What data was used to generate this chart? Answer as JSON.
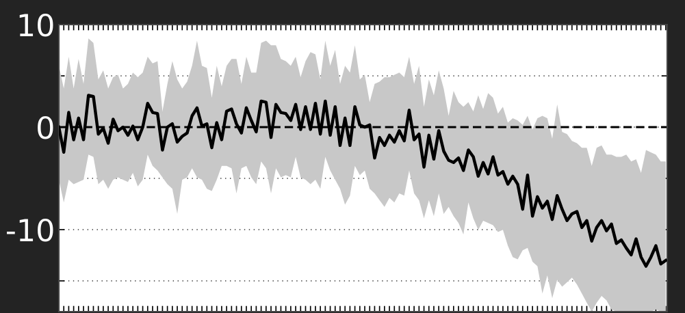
{
  "chart_data": {
    "type": "line",
    "categories": [
      null,
      null,
      null,
      null,
      null,
      null,
      null,
      null,
      null,
      null,
      null,
      null,
      null,
      null,
      null,
      null,
      null,
      null,
      null,
      null,
      null,
      null,
      null,
      null,
      null,
      null,
      null,
      null,
      null,
      null,
      null,
      null,
      null,
      null,
      null,
      null,
      null,
      null,
      null,
      null,
      null,
      null,
      null,
      null,
      null,
      null,
      null,
      null,
      null,
      null,
      null,
      null,
      null,
      null,
      null,
      null,
      null,
      null,
      null,
      null,
      null,
      null,
      null,
      null,
      null,
      null,
      null,
      null,
      null,
      null,
      null,
      null,
      null,
      null,
      null,
      null,
      null,
      null,
      null,
      null,
      null,
      null,
      null,
      null,
      null,
      null,
      null,
      null,
      null,
      null,
      null,
      null,
      null,
      null,
      null,
      null,
      null,
      null,
      null,
      null,
      null,
      null,
      null,
      null,
      null,
      null,
      null,
      null,
      null,
      null,
      null,
      null,
      null,
      null,
      null,
      null,
      null,
      null,
      null,
      null,
      null,
      null,
      null,
      null
    ],
    "ylim": [
      -18,
      10
    ],
    "yticks": [
      10,
      {
        "value": 5,
        "label": null
      },
      0,
      {
        "value": -5,
        "label": null
      },
      -10,
      {
        "value": -15,
        "label": null
      }
    ],
    "grid": "y",
    "legend": false,
    "marker": "none",
    "line_style": "solid",
    "ref_lines": [
      {
        "axis": "y",
        "value": 0,
        "color": "#000000",
        "line_style": "dashed"
      }
    ],
    "series": [
      {
        "color": "#000000",
        "values": [
          0,
          -2.45,
          1.43,
          -1.23,
          0.88,
          -1.23,
          3.1,
          2.99,
          -0.68,
          -0.12,
          -1.57,
          0.77,
          -0.35,
          0,
          -0.79,
          0.1,
          -1.23,
          0,
          2.32,
          1.43,
          1.32,
          -2.23,
          0,
          0.32,
          -1.46,
          -0.9,
          -0.57,
          1.1,
          1.88,
          0.1,
          0.32,
          -2.01,
          0.43,
          -1.23,
          1.55,
          1.77,
          0.32,
          -0.57,
          1.88,
          0.65,
          -0.46,
          2.54,
          2.43,
          -1.01,
          2.21,
          1.43,
          1.32,
          0.65,
          2.21,
          -0.23,
          1.99,
          -0.23,
          2.32,
          -0.68,
          2.54,
          -0.79,
          1.99,
          -1.79,
          0.88,
          -1.79,
          1.99,
          0.21,
          0,
          0.21,
          -3.01,
          -1.01,
          -1.79,
          -0.79,
          -1.46,
          -0.35,
          -1.34,
          1.65,
          -1.23,
          -0.68,
          -3.9,
          -0.79,
          -3.12,
          -0.35,
          -2.34,
          -3.23,
          -3.45,
          -3.01,
          -4.23,
          -2.23,
          -2.9,
          -4.79,
          -3.45,
          -4.57,
          -2.9,
          -4.68,
          -4.34,
          -5.57,
          -4.79,
          -5.57,
          -8.01,
          -4.68,
          -8.68,
          -6.79,
          -7.9,
          -7.23,
          -9.01,
          -6.68,
          -8.01,
          -9.12,
          -8.46,
          -8.23,
          -9.79,
          -9.12,
          -11.12,
          -9.79,
          -9.12,
          -10.12,
          -9.46,
          -11.35,
          -11.01,
          -11.79,
          -12.46,
          -10.9,
          -12.68,
          -13.57,
          -12.68,
          -11.57,
          -13.35,
          -13.01
        ],
        "upper": [
          5.99,
          3.76,
          6.87,
          3.76,
          6.65,
          4.21,
          8.65,
          8.21,
          4.65,
          5.54,
          3.76,
          4.87,
          5.1,
          3.76,
          4.21,
          5.32,
          4.87,
          5.32,
          6.87,
          6.21,
          6.43,
          1.54,
          4.21,
          6.43,
          4.65,
          3.76,
          4.43,
          5.99,
          8.43,
          5.99,
          5.76,
          2.87,
          5.99,
          3.99,
          5.99,
          6.65,
          6.65,
          4.21,
          6.87,
          5.32,
          5.32,
          8.21,
          8.43,
          7.99,
          7.99,
          6.65,
          6.43,
          5.99,
          6.87,
          4.87,
          6.43,
          7.32,
          7.1,
          4.65,
          8.43,
          5.99,
          7.54,
          4.21,
          5.99,
          5.32,
          7.99,
          4.65,
          5.1,
          2.43,
          4.21,
          4.43,
          4.87,
          4.87,
          5.1,
          5.32,
          4.87,
          6.87,
          4.21,
          5.99,
          1.99,
          4.65,
          3.1,
          5.54,
          3.76,
          1.1,
          3.54,
          2.43,
          1.99,
          2.43,
          1.54,
          3.1,
          1.76,
          3.32,
          2.87,
          1.32,
          1.99,
          0.43,
          0.87,
          0.65,
          0.21,
          1.1,
          -0.24,
          0.87,
          1.1,
          0.87,
          -1.13,
          2.21,
          -0.46,
          -0.68,
          -1.35,
          -1.57,
          -2.01,
          -2.01,
          -3.79,
          -2.01,
          -1.79,
          -2.68,
          -2.68,
          -2.9,
          -2.9,
          -2.68,
          -3.35,
          -3.13,
          -4.46,
          -2.24,
          -2.46,
          -2.68,
          -3.35,
          -3.35
        ],
        "lower": [
          -5.13,
          -7.35,
          -5.13,
          -5.57,
          -5.35,
          -5.13,
          -2.68,
          -2.9,
          -5.57,
          -5.13,
          -6.01,
          -5.13,
          -4.9,
          -5.13,
          -5.35,
          -4.46,
          -5.79,
          -5.13,
          -2.68,
          -3.79,
          -4.24,
          -4.9,
          -5.57,
          -6.01,
          -8.46,
          -5.13,
          -4.9,
          -4.01,
          -4.9,
          -5.13,
          -6.01,
          -6.24,
          -5.13,
          -3.79,
          -3.79,
          -4.01,
          -6.46,
          -4.01,
          -3.79,
          -4.9,
          -5.57,
          -3.35,
          -4.01,
          -6.46,
          -4.01,
          -4.9,
          -4.68,
          -4.9,
          -2.9,
          -4.9,
          -5.13,
          -5.57,
          -5.13,
          -6.01,
          -2.9,
          -4.24,
          -5.13,
          -6.01,
          -7.57,
          -6.68,
          -3.79,
          -4.68,
          -4.24,
          -6.01,
          -6.46,
          -7.13,
          -7.79,
          -6.9,
          -7.35,
          -6.46,
          -6.68,
          -4.24,
          -6.46,
          -7.13,
          -8.9,
          -7.13,
          -8.68,
          -6.46,
          -8.46,
          -7.79,
          -8.68,
          -9.35,
          -10.46,
          -7.35,
          -8.9,
          -10.01,
          -9.13,
          -9.35,
          -9.57,
          -10.24,
          -10.01,
          -11.57,
          -12.68,
          -12.9,
          -12.01,
          -11.79,
          -13.13,
          -13.57,
          -16.24,
          -14.46,
          -16.68,
          -14.9,
          -15.57,
          -15.13,
          -14.68,
          -15.35,
          -16.24,
          -17.13,
          -18,
          -17.13,
          -16.46,
          -16.9,
          -17.79,
          -18,
          -18,
          -18,
          -18,
          -18,
          -18,
          -18,
          -18,
          -17.79,
          -18,
          -18
        ]
      }
    ]
  }
}
